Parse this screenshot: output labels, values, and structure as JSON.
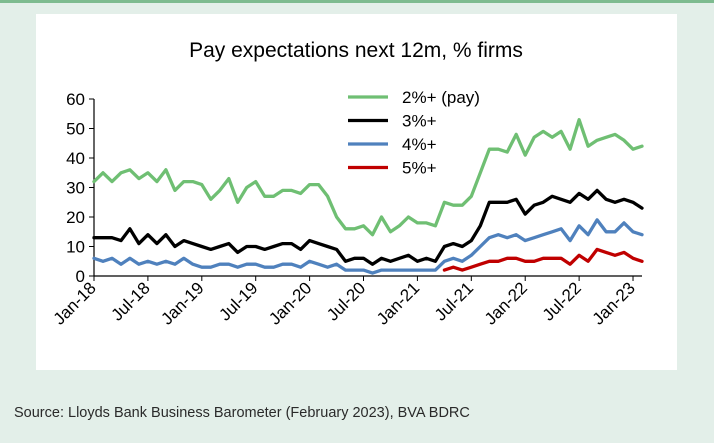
{
  "footer": {
    "source": "Source: Lloyds Bank Business Barometer (February 2023), BVA BDRC"
  },
  "chart_data": {
    "type": "line",
    "title": "Pay expectations next 12m, % firms",
    "xlabel": "",
    "ylabel": "",
    "ylim": [
      0,
      60
    ],
    "yticks": [
      0,
      10,
      20,
      30,
      40,
      50,
      60
    ],
    "xtick_labels": [
      "Jan-18",
      "Jul-18",
      "Jan-19",
      "Jul-19",
      "Jan-20",
      "Jul-20",
      "Jan-21",
      "Jul-21",
      "Jan-22",
      "Jul-22",
      "Jan-23"
    ],
    "x_start": "Jan-18",
    "x_end": "Feb-23",
    "grid": false,
    "legend_position": "top-right",
    "series": [
      {
        "name": "2%+ (pay)",
        "color": "#6fbf73",
        "start": "Jan-18",
        "values": [
          32,
          35,
          32,
          35,
          36,
          33,
          35,
          32,
          36,
          29,
          32,
          32,
          31,
          26,
          29,
          33,
          25,
          30,
          32,
          27,
          27,
          29,
          29,
          28,
          31,
          31,
          27,
          20,
          16,
          16,
          17,
          14,
          20,
          15,
          17,
          20,
          18,
          18,
          17,
          25,
          24,
          24,
          27,
          35,
          43,
          43,
          42,
          48,
          41,
          47,
          49,
          47,
          49,
          43,
          53,
          44,
          46,
          47,
          48,
          46,
          43,
          44
        ]
      },
      {
        "name": "3%+",
        "color": "#000000",
        "start": "Jan-18",
        "values": [
          13,
          13,
          13,
          12,
          16,
          11,
          14,
          11,
          14,
          10,
          12,
          11,
          10,
          9,
          10,
          11,
          8,
          10,
          10,
          9,
          10,
          11,
          11,
          9,
          12,
          11,
          10,
          9,
          5,
          6,
          6,
          4,
          6,
          5,
          6,
          7,
          5,
          6,
          5,
          10,
          11,
          10,
          12,
          17,
          25,
          25,
          25,
          26,
          21,
          24,
          25,
          27,
          26,
          25,
          28,
          26,
          29,
          26,
          25,
          26,
          25,
          23
        ]
      },
      {
        "name": "4%+",
        "color": "#4f81bd",
        "start": "Jan-18",
        "values": [
          6,
          5,
          6,
          4,
          6,
          4,
          5,
          4,
          5,
          4,
          6,
          4,
          3,
          3,
          4,
          4,
          3,
          4,
          4,
          3,
          3,
          4,
          4,
          3,
          5,
          4,
          3,
          4,
          2,
          2,
          2,
          1,
          2,
          2,
          2,
          2,
          2,
          2,
          2,
          5,
          6,
          5,
          7,
          10,
          13,
          14,
          13,
          14,
          12,
          13,
          14,
          15,
          16,
          12,
          17,
          14,
          19,
          15,
          15,
          18,
          15,
          14
        ]
      },
      {
        "name": "5%+",
        "color": "#c00000",
        "start": "Apr-21",
        "values": [
          2,
          3,
          2,
          3,
          4,
          5,
          5,
          6,
          6,
          5,
          5,
          6,
          6,
          6,
          4,
          7,
          5,
          9,
          8,
          7,
          8,
          6,
          5
        ]
      }
    ]
  }
}
